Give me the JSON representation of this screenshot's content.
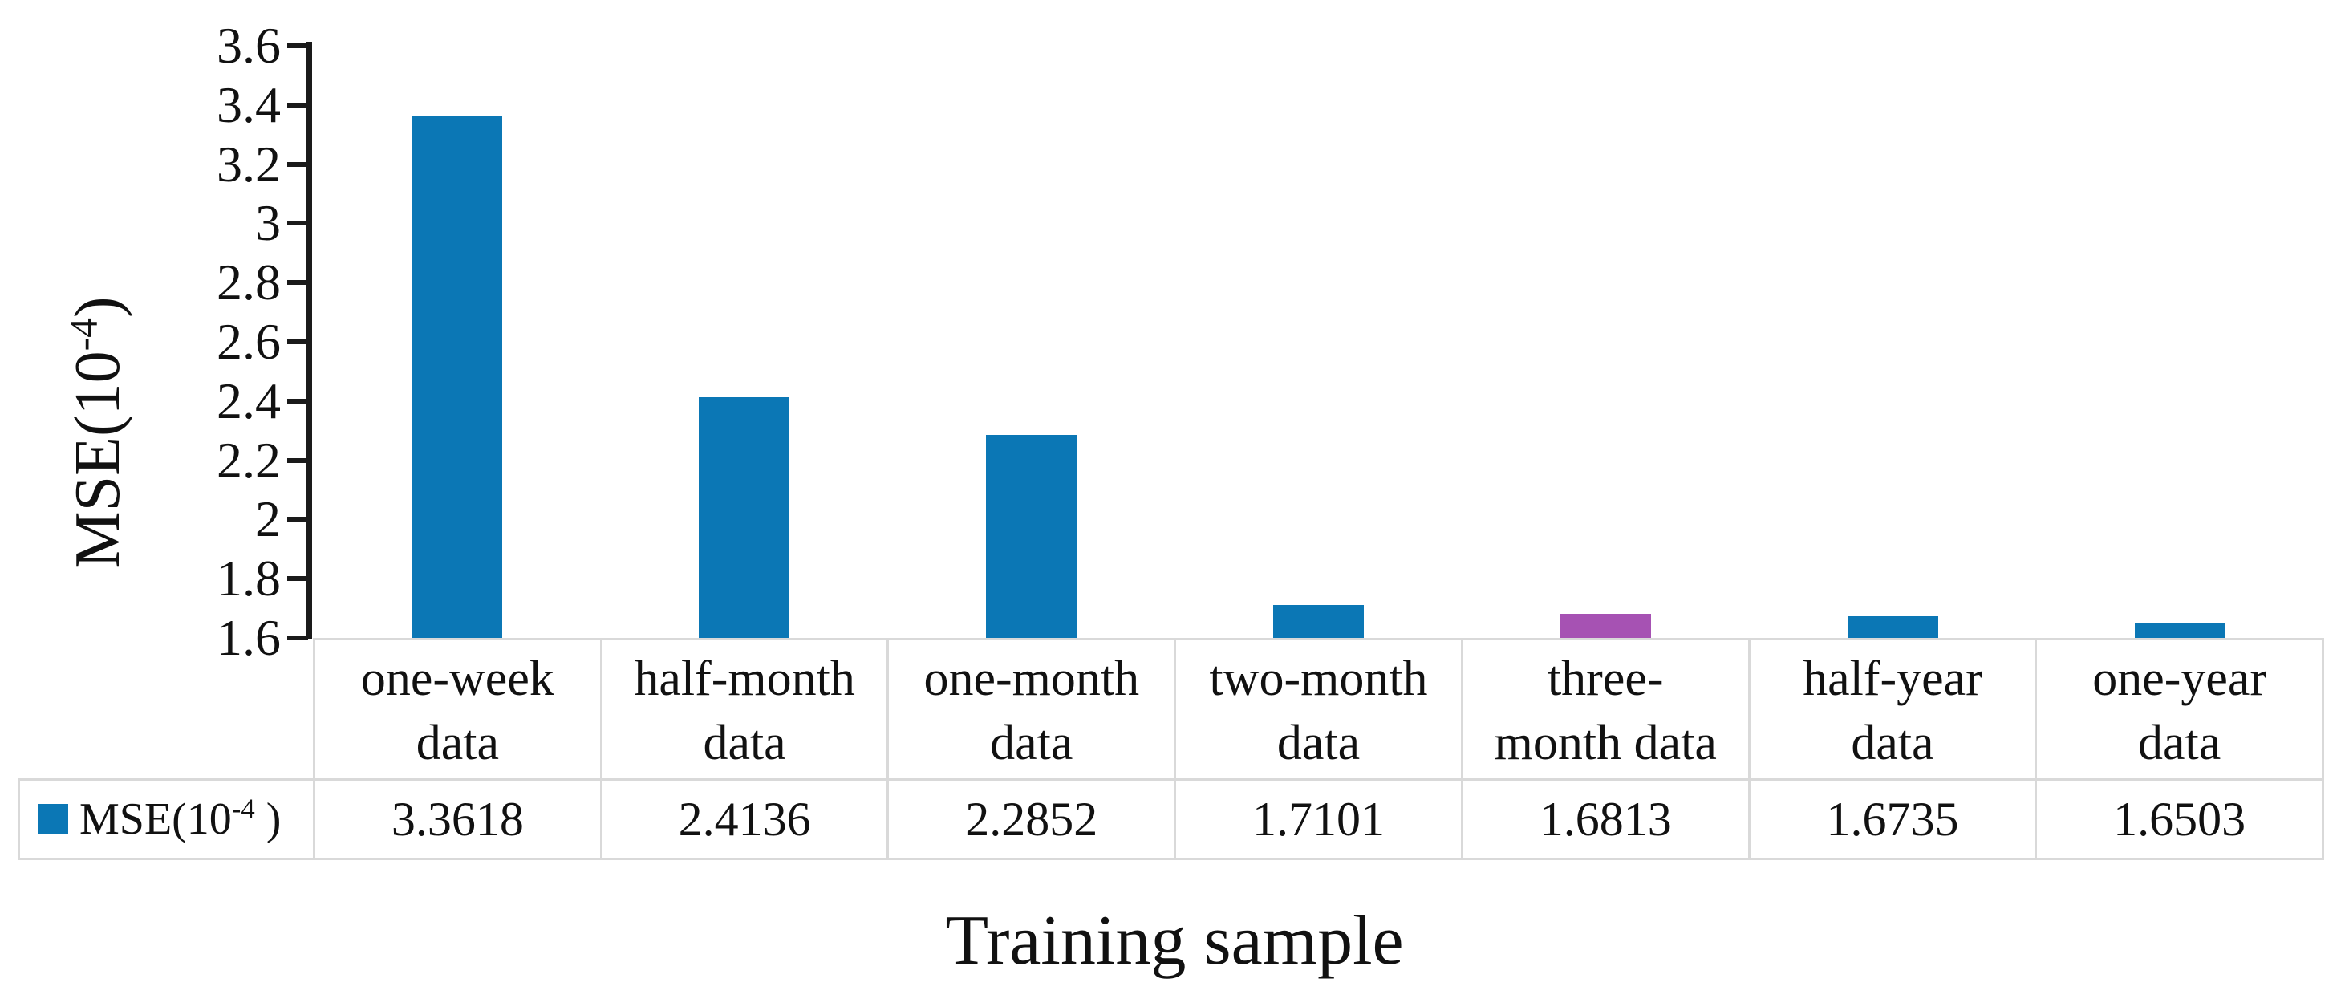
{
  "figure": {
    "y_axis_title": {
      "prefix": "MSE(10",
      "sup": "-4",
      "suffix": ")"
    },
    "x_axis_title": "Training sample",
    "legend": {
      "prefix": "MSE(10",
      "sup": "-4",
      "suffix": " )"
    },
    "colors": {
      "bar_blue": "#0B77B5",
      "bar_purple": "#A652B3",
      "axis": "#1a1a1a",
      "table_border": "#d9d9d9",
      "text": "#111111"
    }
  },
  "chart_data": {
    "type": "bar",
    "title": "",
    "xlabel": "Training sample",
    "ylabel": "MSE(10^-4)",
    "categories": [
      "one-week data",
      "half-month data",
      "one-month data",
      "two-month data",
      "three-month data",
      "half-year data",
      "one-year data"
    ],
    "categories_wrapped": [
      [
        "one-week",
        "data"
      ],
      [
        "half-month",
        "data"
      ],
      [
        "one-month",
        "data"
      ],
      [
        "two-month",
        "data"
      ],
      [
        "three-",
        "month data"
      ],
      [
        "half-year",
        "data"
      ],
      [
        "one-year",
        "data"
      ]
    ],
    "series": [
      {
        "name": "MSE(10^-4)",
        "values": [
          3.3618,
          2.4136,
          2.2852,
          1.7101,
          1.6813,
          1.6735,
          1.6503
        ]
      }
    ],
    "value_labels": [
      "3.3618",
      "2.4136",
      "2.2852",
      "1.7101",
      "1.6813",
      "1.6735",
      "1.6503"
    ],
    "bar_colors": [
      "#0B77B5",
      "#0B77B5",
      "#0B77B5",
      "#0B77B5",
      "#A652B3",
      "#0B77B5",
      "#0B77B5"
    ],
    "ylim": [
      1.6,
      3.6
    ],
    "ytick_values": [
      3.6,
      3.4,
      3.2,
      3.0,
      2.8,
      2.6,
      2.4,
      2.2,
      2.0,
      1.8,
      1.6
    ],
    "ytick_labels": [
      "3.6",
      "3.4",
      "3.2",
      "3",
      "2.8",
      "2.6",
      "2.4",
      "2.2",
      "2",
      "1.8",
      "1.6"
    ],
    "grid": false,
    "legend_position": "table-bottom-left",
    "data_table_shown": true
  }
}
